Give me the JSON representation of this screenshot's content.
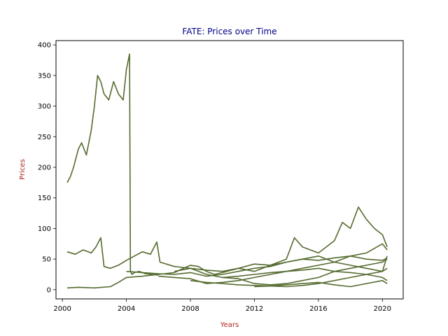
{
  "chart_data": {
    "type": "line",
    "title": "FATE: Prices over Time",
    "xlabel": "Years",
    "ylabel": "Prices",
    "xlim": [
      1999.6,
      2021.3
    ],
    "ylim": [
      -15,
      407
    ],
    "xticks": [
      2000,
      2004,
      2008,
      2012,
      2016,
      2020
    ],
    "xtick_labels": [
      "2000",
      "2004",
      "2008",
      "2012",
      "2016",
      "2020"
    ],
    "yticks": [
      0,
      50,
      100,
      150,
      200,
      250,
      300,
      350,
      400
    ],
    "ytick_labels": [
      "0",
      "50",
      "100",
      "150",
      "200",
      "250",
      "300",
      "350",
      "400"
    ],
    "grid": false,
    "line_color": "#556b2f",
    "title_color": "#00008b",
    "label_color": "#b22222",
    "series": [
      {
        "x": [
          2000.3,
          2000.5,
          2000.7,
          2001.0,
          2001.2,
          2001.5,
          2001.8,
          2002.0,
          2002.2,
          2002.4,
          2002.6,
          2002.9,
          2003.2,
          2003.5,
          2003.8,
          2004.0,
          2004.2,
          2004.25,
          2004.35,
          2004.5,
          2004.8,
          2005.2,
          2005.6,
          2006.0
        ],
        "y": [
          175,
          185,
          200,
          230,
          240,
          220,
          260,
          300,
          350,
          340,
          320,
          310,
          340,
          320,
          310,
          360,
          385,
          30,
          25,
          28,
          30,
          26,
          25,
          24
        ]
      },
      {
        "x": [
          2000.3,
          2000.8,
          2001.3,
          2001.8,
          2002.1,
          2002.4,
          2002.6,
          2003.0,
          2003.5,
          2004.0,
          2004.5,
          2005.0,
          2005.5,
          2005.9,
          2006.1,
          2007.0,
          2008.0,
          2009.0,
          2010.0,
          2011.0,
          2012.0,
          2013.0,
          2014.0,
          2015.0,
          2016.0,
          2017.0,
          2018.0,
          2019.0,
          2020.0,
          2020.3
        ],
        "y": [
          62,
          58,
          65,
          60,
          70,
          85,
          38,
          35,
          40,
          48,
          55,
          62,
          58,
          78,
          45,
          38,
          35,
          32,
          30,
          35,
          42,
          40,
          45,
          50,
          48,
          52,
          55,
          50,
          48,
          52
        ]
      },
      {
        "x": [
          2000.3,
          2001.0,
          2002.0,
          2003.0,
          2003.5,
          2004.0,
          2005.0,
          2006.0,
          2007.0,
          2008.0,
          2008.5,
          2009.0,
          2009.5,
          2010.0,
          2011.0,
          2012.0,
          2013.0,
          2014.0,
          2014.5,
          2015.0,
          2016.0,
          2017.0,
          2017.5,
          2018.0,
          2018.5,
          2019.0,
          2019.5,
          2020.0,
          2020.3
        ],
        "y": [
          3,
          4,
          3,
          5,
          12,
          20,
          22,
          25,
          28,
          40,
          38,
          30,
          25,
          28,
          35,
          30,
          40,
          50,
          85,
          70,
          60,
          80,
          110,
          100,
          135,
          115,
          100,
          90,
          70
        ]
      },
      {
        "x": [
          2004.0,
          2005.0,
          2006.0,
          2007.0,
          2008.0,
          2009.0,
          2010.0,
          2011.0,
          2012.0,
          2013.0,
          2014.0,
          2015.0,
          2016.0,
          2017.0,
          2018.0,
          2019.0,
          2020.0,
          2020.3
        ],
        "y": [
          30,
          28,
          26,
          25,
          28,
          22,
          25,
          30,
          35,
          38,
          45,
          50,
          55,
          45,
          40,
          35,
          30,
          35
        ]
      },
      {
        "x": [
          2006.0,
          2007.0,
          2008.0,
          2009.0,
          2010.0,
          2011.0,
          2012.0,
          2013.0,
          2014.0,
          2015.0,
          2016.0,
          2017.0,
          2018.0,
          2019.0,
          2020.0,
          2020.3
        ],
        "y": [
          22,
          20,
          18,
          10,
          12,
          15,
          20,
          25,
          30,
          35,
          40,
          45,
          55,
          60,
          75,
          65
        ]
      },
      {
        "x": [
          2007.0,
          2008.0,
          2009.0,
          2010.0,
          2011.0,
          2012.0,
          2013.0,
          2014.0,
          2015.0,
          2016.0,
          2017.0,
          2018.0,
          2019.0,
          2020.0,
          2020.3
        ],
        "y": [
          30,
          35,
          25,
          20,
          18,
          10,
          8,
          10,
          15,
          20,
          30,
          35,
          40,
          45,
          50
        ]
      },
      {
        "x": [
          2008.0,
          2009.0,
          2010.0,
          2011.0,
          2012.0,
          2013.0,
          2014.0,
          2015.0,
          2016.0,
          2017.0,
          2018.0,
          2019.0,
          2020.0,
          2020.3
        ],
        "y": [
          15,
          12,
          10,
          8,
          7,
          6,
          5,
          7,
          10,
          15,
          20,
          25,
          30,
          55
        ]
      },
      {
        "x": [
          2010.0,
          2011.0,
          2012.0,
          2013.0,
          2014.0,
          2015.0,
          2016.0,
          2017.0,
          2018.0,
          2019.0,
          2020.0,
          2020.3
        ],
        "y": [
          20,
          22,
          25,
          28,
          30,
          32,
          35,
          30,
          28,
          25,
          20,
          15
        ]
      },
      {
        "x": [
          2012.0,
          2013.0,
          2014.0,
          2015.0,
          2016.0,
          2017.0,
          2018.0,
          2019.0,
          2020.0,
          2020.3
        ],
        "y": [
          5,
          6,
          8,
          10,
          12,
          8,
          5,
          10,
          15,
          10
        ]
      }
    ]
  }
}
